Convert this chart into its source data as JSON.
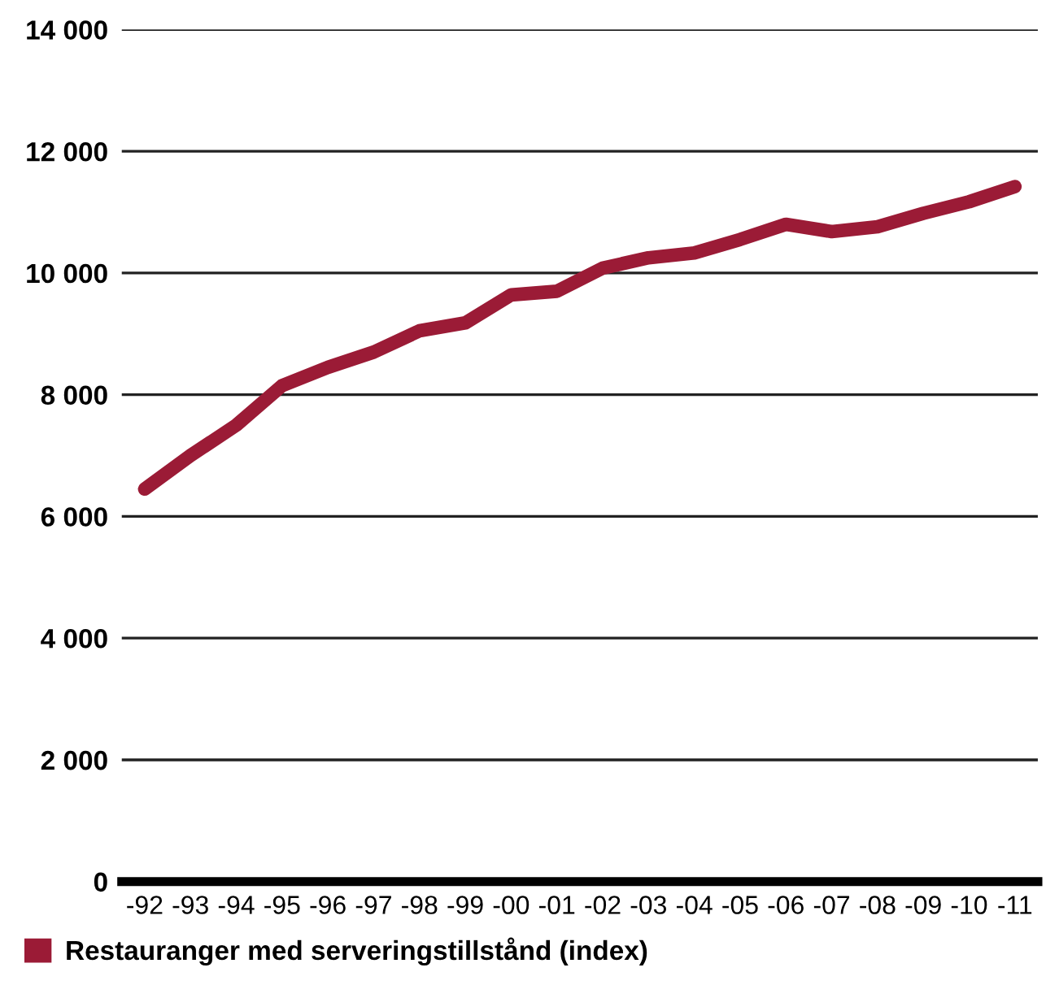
{
  "chart_data": {
    "type": "line",
    "categories": [
      "-92",
      "-93",
      "-94",
      "-95",
      "-96",
      "-97",
      "-98",
      "-99",
      "-00",
      "-01",
      "-02",
      "-03",
      "-04",
      "-05",
      "-06",
      "-07",
      "-08",
      "-09",
      "-10",
      "-11"
    ],
    "series": [
      {
        "name": "Restauranger med serveringstillstånd (index)",
        "color": "#9b1b36",
        "values": [
          6450,
          7000,
          7500,
          8150,
          8450,
          8700,
          9050,
          9180,
          9640,
          9700,
          10080,
          10250,
          10330,
          10550,
          10800,
          10680,
          10760,
          10980,
          11170,
          11420
        ]
      }
    ],
    "ylim": [
      0,
      14000
    ],
    "yticks": [
      {
        "value": 0,
        "label": "0"
      },
      {
        "value": 2000,
        "label": "2 000"
      },
      {
        "value": 4000,
        "label": "4 000"
      },
      {
        "value": 6000,
        "label": "6 000"
      },
      {
        "value": 8000,
        "label": "8 000"
      },
      {
        "value": 10000,
        "label": "10 000"
      },
      {
        "value": 12000,
        "label": "12 000"
      },
      {
        "value": 14000,
        "label": "14 000"
      }
    ],
    "grid": "y",
    "legend": "bottom left",
    "marker": "none",
    "line_style": "solid"
  }
}
